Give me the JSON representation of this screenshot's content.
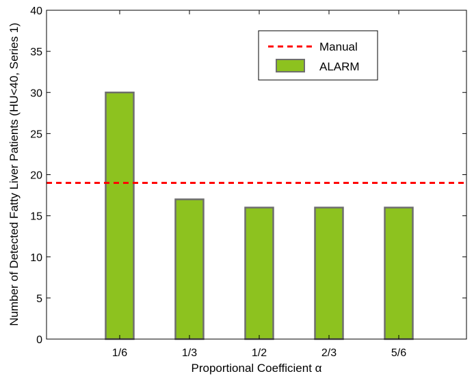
{
  "chart_data": {
    "type": "bar",
    "categories": [
      "1/6",
      "1/3",
      "1/2",
      "2/3",
      "5/6"
    ],
    "series": [
      {
        "name": "ALARM",
        "values": [
          30,
          17,
          16,
          16,
          16
        ],
        "color": "#8dc21f",
        "edge_color": "#6e6e6e"
      }
    ],
    "reference_lines": [
      {
        "name": "Manual",
        "value": 19,
        "color": "#ff0000",
        "style": "dashed"
      }
    ],
    "xlabel": "Proportional Coefficient α",
    "ylabel": "Number of Detected Fatty Liver Patients (HU<40, Series 1)",
    "ylim": [
      0,
      40
    ],
    "yticks": [
      0,
      5,
      10,
      15,
      20,
      25,
      30,
      35,
      40
    ],
    "grid": false,
    "legend_position": "top-right"
  }
}
